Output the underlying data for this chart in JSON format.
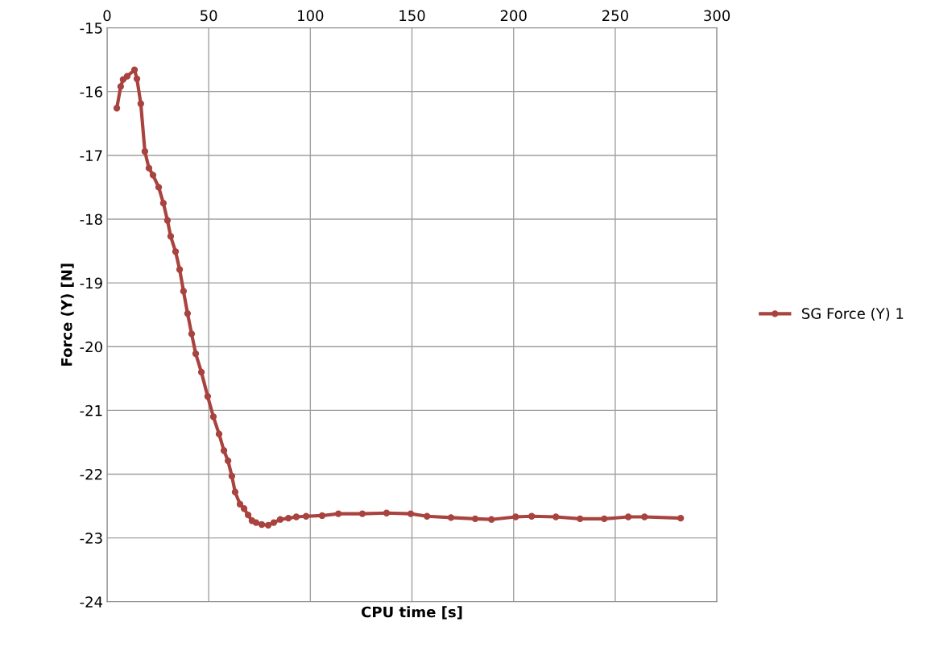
{
  "chart_data": {
    "type": "line",
    "xlabel": "CPU time [s]",
    "ylabel": "Force (Y) [N]",
    "xlim": [
      0,
      300
    ],
    "xticks": [
      0,
      50,
      100,
      150,
      200,
      250,
      300
    ],
    "ylim": [
      -24,
      -15
    ],
    "yticks": [
      -24,
      -23,
      -22,
      -21,
      -20,
      -19,
      -18,
      -17,
      -16,
      -15
    ],
    "grid": true,
    "legend": "right",
    "marker": "circle",
    "line_style": "solid",
    "x": [
      4.8,
      6.7,
      7.9,
      9.9,
      13.5,
      14.7,
      16.6,
      18.6,
      20.6,
      22.6,
      25.4,
      27.7,
      29.7,
      31.3,
      33.7,
      35.7,
      37.6,
      39.6,
      41.6,
      43.6,
      46.4,
      49.5,
      52.3,
      55.1,
      57.5,
      59.5,
      61.4,
      63.0,
      65.4,
      67.4,
      69.4,
      71.3,
      73.3,
      76.1,
      79.3,
      82.0,
      85.2,
      89.2,
      93.1,
      97.9,
      105.8,
      113.8,
      125.6,
      137.5,
      149.4,
      157.4,
      169.2,
      181.1,
      189.1,
      201.0,
      208.9,
      220.8,
      232.7,
      244.6,
      256.4,
      264.4,
      282.2
    ],
    "series": [
      {
        "name": "SG Force (Y) 1",
        "color": "#a9433f",
        "values": [
          -16.26,
          -15.92,
          -15.81,
          -15.76,
          -15.66,
          -15.8,
          -16.19,
          -16.94,
          -17.2,
          -17.31,
          -17.5,
          -17.75,
          -18.02,
          -18.27,
          -18.51,
          -18.79,
          -19.13,
          -19.48,
          -19.8,
          -20.11,
          -20.4,
          -20.78,
          -21.1,
          -21.37,
          -21.63,
          -21.79,
          -22.03,
          -22.28,
          -22.47,
          -22.54,
          -22.64,
          -22.73,
          -22.76,
          -22.79,
          -22.8,
          -22.76,
          -22.71,
          -22.69,
          -22.67,
          -22.66,
          -22.65,
          -22.62,
          -22.62,
          -22.61,
          -22.62,
          -22.66,
          -22.68,
          -22.7,
          -22.71,
          -22.67,
          -22.66,
          -22.67,
          -22.7,
          -22.7,
          -22.67,
          -22.67,
          -22.69
        ]
      }
    ]
  }
}
